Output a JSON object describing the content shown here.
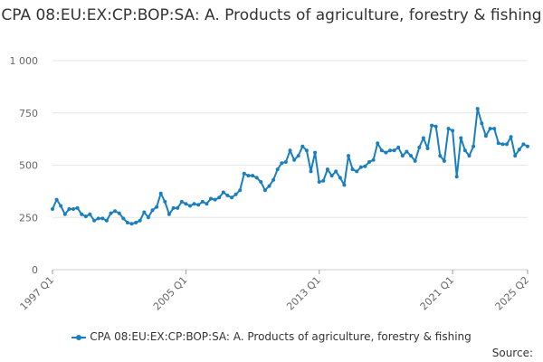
{
  "chart_data": {
    "type": "line",
    "title": "CPA 08:EU:EX:CP:BOP:SA: A. Products of agriculture, forestry & fishing",
    "xlabel": "",
    "ylabel": "",
    "ylim": [
      0,
      1000
    ],
    "yticks": [
      "0",
      "250",
      "500",
      "750",
      "1 000"
    ],
    "ytick_values": [
      0,
      250,
      500,
      750,
      1000
    ],
    "xticks": [
      "1997 Q1",
      "2005 Q1",
      "2013 Q1",
      "2021 Q1",
      "2025 Q2"
    ],
    "grid": true,
    "legend_position": "bottom",
    "series": [
      {
        "name": "CPA 08:EU:EX:CP:BOP:SA: A. Products of agriculture, forestry & fishing",
        "color": "#1a7fbf",
        "values": [
          290,
          335,
          305,
          265,
          290,
          290,
          295,
          265,
          255,
          265,
          235,
          245,
          245,
          235,
          270,
          280,
          270,
          245,
          225,
          220,
          225,
          235,
          275,
          250,
          285,
          300,
          365,
          325,
          265,
          295,
          295,
          325,
          315,
          305,
          315,
          310,
          325,
          315,
          340,
          335,
          345,
          370,
          355,
          345,
          360,
          380,
          460,
          450,
          450,
          440,
          420,
          380,
          400,
          430,
          480,
          510,
          515,
          570,
          525,
          545,
          590,
          570,
          470,
          560,
          420,
          425,
          480,
          450,
          470,
          440,
          405,
          545,
          480,
          470,
          490,
          495,
          515,
          525,
          605,
          570,
          560,
          570,
          570,
          585,
          545,
          565,
          545,
          520,
          585,
          630,
          580,
          690,
          685,
          545,
          520,
          675,
          665,
          445,
          630,
          570,
          545,
          590,
          770,
          700,
          640,
          675,
          675,
          605,
          600,
          600,
          635,
          545,
          575,
          600,
          590
        ]
      }
    ]
  },
  "legend": {
    "label": "CPA 08:EU:EX:CP:BOP:SA: A. Products of agriculture, forestry & fishing"
  },
  "source_label": "Source:"
}
